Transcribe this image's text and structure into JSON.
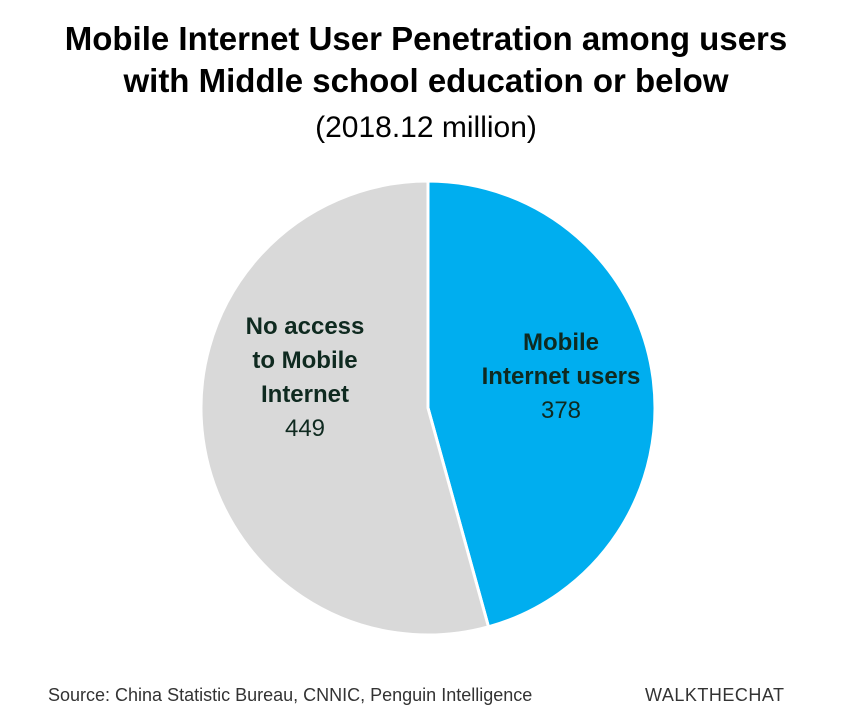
{
  "chart_data": {
    "type": "pie",
    "title_lines": [
      "Mobile Internet User Penetration among users",
      "with Middle school education or below"
    ],
    "subtitle": "(2018.12 million)",
    "slices": [
      {
        "label_lines": [
          "Mobile",
          "Internet users"
        ],
        "value": 378,
        "color": "#00aeef"
      },
      {
        "label_lines": [
          "No access",
          "to Mobile",
          "Internet"
        ],
        "value": 449,
        "color": "#d9d9d9"
      }
    ],
    "start_angle": "12 o'clock",
    "direction": "clockwise",
    "legend": "none"
  },
  "footer": {
    "source": "Source: China Statistic Bureau, CNNIC, Penguin Intelligence",
    "brand": "WALKTHECHAT"
  }
}
